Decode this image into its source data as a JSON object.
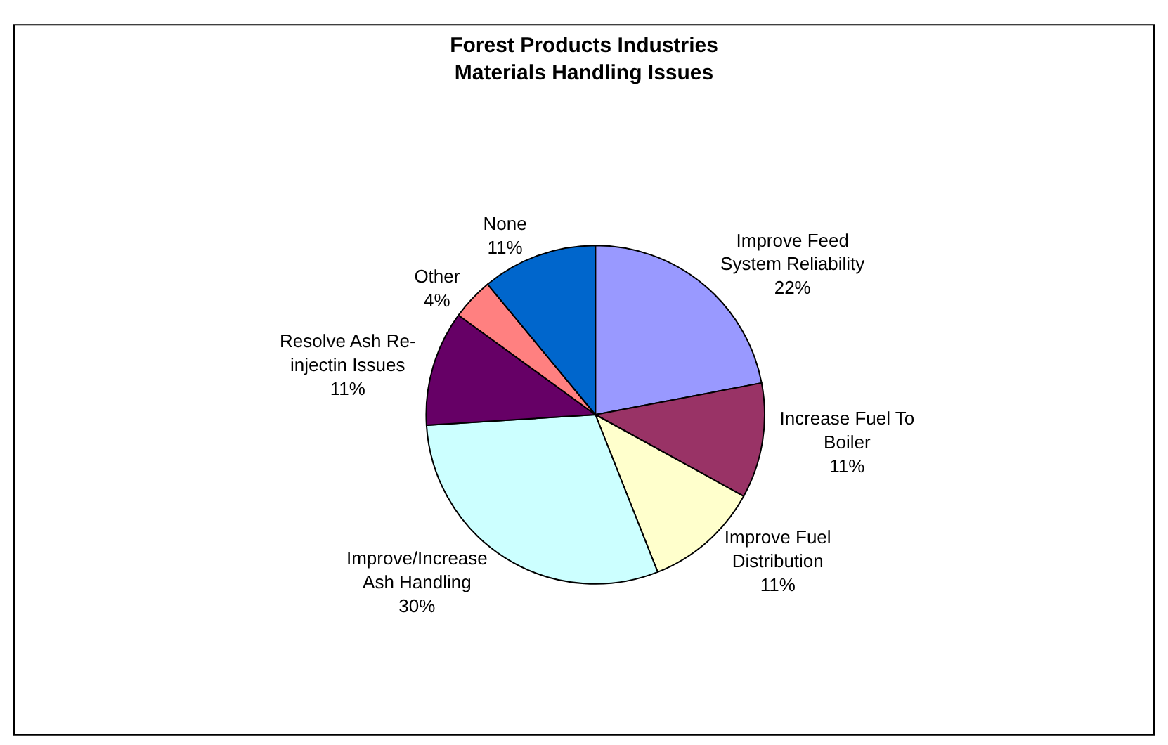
{
  "chart_data": {
    "type": "pie",
    "title": "Forest Products Industries\nMaterials Handling Issues",
    "categories": [
      "Improve Feed\nSystem Reliability",
      "Increase Fuel To\nBoiler",
      "Improve Fuel\nDistribution",
      "Improve/Increase\nAsh Handling",
      "Resolve Ash Re-\ninjectin Issues",
      "Other",
      "None"
    ],
    "values": [
      22,
      11,
      11,
      30,
      11,
      4,
      11
    ],
    "value_labels": [
      "22%",
      "11%",
      "11%",
      "30%",
      "11%",
      "4%",
      "11%"
    ],
    "colors": [
      "#9999ff",
      "#993366",
      "#ffffcc",
      "#ccffff",
      "#660066",
      "#ff8080",
      "#0066cc"
    ],
    "legend": false
  }
}
